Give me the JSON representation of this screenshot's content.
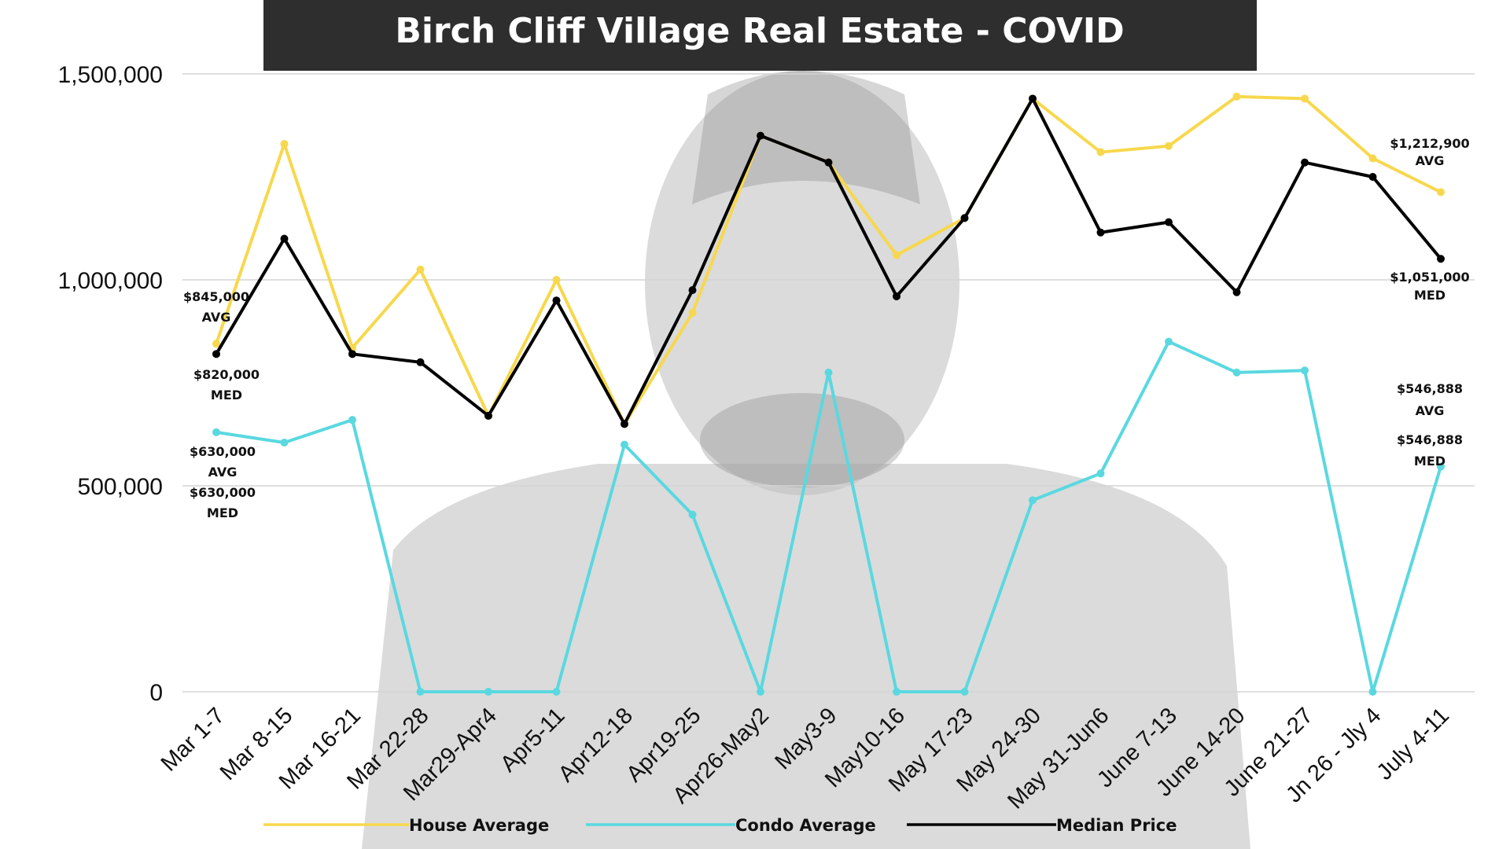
{
  "chart_data": {
    "type": "line",
    "title": "Birch Cliff Village Real Estate - COVID",
    "xlabel": "",
    "ylabel": "",
    "ylim": [
      0,
      1500000
    ],
    "yticks": [
      0,
      500000,
      1000000,
      1500000
    ],
    "ytick_labels": [
      "0",
      "500,000",
      "1,000,000",
      "1,500,000"
    ],
    "grid": true,
    "legend_position": "bottom",
    "categories": [
      "Mar 1-7",
      "Mar 8-15",
      "Mar 16-21",
      "Mar 22-28",
      "Mar29-Apr4",
      "Apr5-11",
      "Apr12-18",
      "Apr19-25",
      "Apr26-May2",
      "May3-9",
      "May10-16",
      "May 17-23",
      "May 24-30",
      "May 31-Jun6",
      "June 7-13",
      "June 14-20",
      "June 21-27",
      "Jn 26 - Jly 4",
      "July 4-11"
    ],
    "series": [
      {
        "name": "House Average",
        "color": "#f7d84d",
        "values": [
          845000,
          1330000,
          835000,
          1025000,
          670000,
          1000000,
          650000,
          920000,
          1350000,
          1285000,
          1060000,
          1150000,
          1440000,
          1310000,
          1325000,
          1445000,
          1440000,
          1295000,
          1212900
        ]
      },
      {
        "name": "Condo Average",
        "color": "#5ad8e0",
        "values": [
          630000,
          605000,
          660000,
          0,
          0,
          0,
          600000,
          430000,
          0,
          775000,
          0,
          0,
          465000,
          530000,
          850000,
          775000,
          780000,
          0,
          546888
        ]
      },
      {
        "name": "Median Price",
        "color": "#000000",
        "values": [
          820000,
          1100000,
          820000,
          800000,
          670000,
          950000,
          650000,
          975000,
          1350000,
          1285000,
          960000,
          1150000,
          1440000,
          1115000,
          1140000,
          970000,
          1285000,
          1250000,
          1051000
        ]
      }
    ],
    "annotations": [
      {
        "text": "$845,000",
        "anchor": "start-house"
      },
      {
        "text": "AVG",
        "anchor": "start-house"
      },
      {
        "text": "$820,000",
        "anchor": "start-median"
      },
      {
        "text": "MED",
        "anchor": "start-median"
      },
      {
        "text": "$630,000",
        "anchor": "start-condo-avg"
      },
      {
        "text": "AVG",
        "anchor": "start-condo-avg"
      },
      {
        "text": "$630,000",
        "anchor": "start-condo-med"
      },
      {
        "text": "MED",
        "anchor": "start-condo-med"
      },
      {
        "text": "$1,212,900",
        "anchor": "end-house"
      },
      {
        "text": "AVG",
        "anchor": "end-house"
      },
      {
        "text": "$1,051,000",
        "anchor": "end-median"
      },
      {
        "text": "MED",
        "anchor": "end-median"
      },
      {
        "text": "$546,888",
        "anchor": "end-condo-avg"
      },
      {
        "text": "AVG",
        "anchor": "end-condo-avg"
      },
      {
        "text": "$546,888",
        "anchor": "end-condo-med"
      },
      {
        "text": "MED",
        "anchor": "end-condo-med"
      }
    ]
  }
}
